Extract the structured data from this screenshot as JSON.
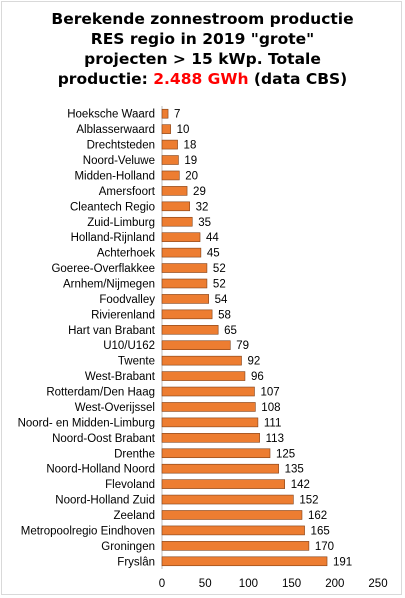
{
  "chart_data": {
    "type": "bar",
    "orientation": "horizontal",
    "title_lines": [
      "Berekende zonnestroom productie",
      "RES regio in 2019 \"grote\"",
      "projecten > 15 kWp. Totale"
    ],
    "title_last_prefix": "productie: ",
    "title_highlight": "2.488 GWh",
    "title_last_suffix": " (data CBS)",
    "highlight_color": "#ff0000",
    "bar_color": "#ed7d31",
    "bar_edge_color": "#7f3f16",
    "categories": [
      "Hoeksche Waard",
      "Alblasserwaard",
      "Drechtsteden",
      "Noord-Veluwe",
      "Midden-Holland",
      "Amersfoort",
      "Cleantech Regio",
      "Zuid-Limburg",
      "Holland-Rijnland",
      "Achterhoek",
      "Goeree-Overflakkee",
      "Arnhem/Nijmegen",
      "Foodvalley",
      "Rivierenland",
      "Hart van Brabant",
      "U10/U162",
      "Twente",
      "West-Brabant",
      "Rotterdam/Den Haag",
      "West-Overijssel",
      "Noord- en Midden-Limburg",
      "Noord-Oost Brabant",
      "Drenthe",
      "Noord-Holland Noord",
      "Flevoland",
      "Noord-Holland Zuid",
      "Zeeland",
      "Metropoolregio Eindhoven",
      "Groningen",
      "Fryslân"
    ],
    "values": [
      7,
      10,
      18,
      19,
      20,
      29,
      32,
      35,
      44,
      45,
      52,
      52,
      54,
      58,
      65,
      79,
      92,
      96,
      107,
      108,
      111,
      113,
      125,
      135,
      142,
      152,
      162,
      165,
      170,
      191
    ],
    "xlim": [
      0,
      250
    ],
    "xticks": [
      0,
      50,
      100,
      150,
      200,
      250
    ],
    "grid": false,
    "data_labels": true
  }
}
